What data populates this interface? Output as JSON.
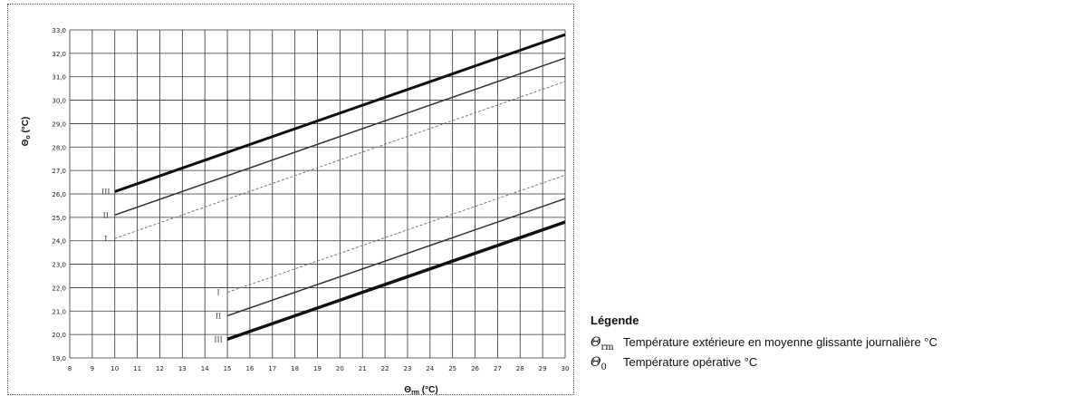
{
  "chart_data": {
    "type": "line",
    "xlabel_symbol": "Θ",
    "xlabel_sub": "rm",
    "xlabel_unit": "(°C)",
    "ylabel_symbol": "Θ",
    "ylabel_sub": "o",
    "ylabel_unit": "(°C)",
    "xlim": [
      8,
      30
    ],
    "ylim": [
      19,
      33
    ],
    "x_ticks": [
      "8",
      "9",
      "10",
      "11",
      "12",
      "13",
      "14",
      "15",
      "16",
      "17",
      "18",
      "19",
      "20",
      "21",
      "22",
      "23",
      "24",
      "25",
      "26",
      "27",
      "28",
      "29",
      "30"
    ],
    "y_ticks": [
      "19,0",
      "20,0",
      "21,0",
      "22,0",
      "23,0",
      "24,0",
      "25,0",
      "26,0",
      "27,0",
      "28,0",
      "29,0",
      "30,0",
      "31,0",
      "32,0",
      "33,0"
    ],
    "grid": true,
    "series": [
      {
        "name": "III",
        "values": [
          [
            10,
            26.1
          ],
          [
            30,
            32.8
          ]
        ],
        "stroke": "#111111",
        "width": 3,
        "dash": ""
      },
      {
        "name": "II",
        "values": [
          [
            10,
            25.1
          ],
          [
            30,
            31.8
          ]
        ],
        "stroke": "#333333",
        "width": 1.5,
        "dash": ""
      },
      {
        "name": "I",
        "values": [
          [
            10,
            24.1
          ],
          [
            30,
            30.8
          ]
        ],
        "stroke": "#777777",
        "width": 1,
        "dash": "3,2"
      },
      {
        "name": "I",
        "values": [
          [
            15,
            21.8
          ],
          [
            30,
            26.8
          ]
        ],
        "stroke": "#777777",
        "width": 1,
        "dash": "3,2"
      },
      {
        "name": "II",
        "values": [
          [
            15,
            20.8
          ],
          [
            30,
            25.8
          ]
        ],
        "stroke": "#333333",
        "width": 1.5,
        "dash": ""
      },
      {
        "name": "III",
        "values": [
          [
            15,
            19.8
          ],
          [
            30,
            24.8
          ]
        ],
        "stroke": "#111111",
        "width": 3.5,
        "dash": ""
      }
    ],
    "annotations": [
      {
        "text": "III",
        "x": 9.6,
        "y": 26.1
      },
      {
        "text": "II",
        "x": 9.6,
        "y": 25.1
      },
      {
        "text": "I",
        "x": 9.6,
        "y": 24.1
      },
      {
        "text": "I",
        "x": 14.6,
        "y": 21.8
      },
      {
        "text": "II",
        "x": 14.6,
        "y": 20.8
      },
      {
        "text": "III",
        "x": 14.6,
        "y": 19.8
      }
    ]
  },
  "legend": {
    "title": "Légende",
    "items": [
      {
        "symbol": "Θ",
        "sub": "rm",
        "text": "Température extérieure en moyenne glissante journalière °C"
      },
      {
        "symbol": "Θ",
        "sub": "0",
        "text": "Température opérative °C"
      }
    ]
  }
}
